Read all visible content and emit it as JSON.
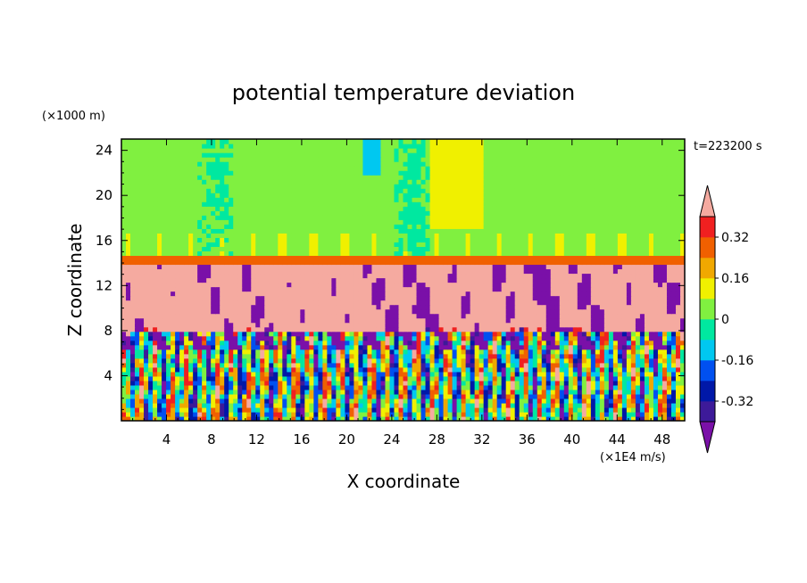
{
  "chart_data": {
    "type": "heatmap",
    "title": "potential temperature deviation",
    "time_label": "t=223200 s",
    "xlabel": "X coordinate",
    "ylabel": "Z coordinate",
    "x_unit": "(×1E4 m/s)",
    "y_unit": "(×1000 m)",
    "xlim": [
      0,
      50
    ],
    "ylim": [
      0,
      25
    ],
    "x_ticks": [
      4,
      8,
      12,
      16,
      20,
      24,
      28,
      32,
      36,
      40,
      44,
      48
    ],
    "y_ticks": [
      4,
      8,
      12,
      16,
      20,
      24
    ],
    "colorbar": {
      "boundaries": [
        -0.4,
        -0.32,
        -0.24,
        -0.16,
        -0.08,
        0,
        0.08,
        0.16,
        0.24,
        0.32,
        0.4
      ],
      "colors": [
        "#3d1a99",
        "#0018a8",
        "#0050f0",
        "#00c8f0",
        "#00e8a0",
        "#80f040",
        "#f0f000",
        "#f0a800",
        "#f06000",
        "#f02020"
      ],
      "under_color": "#7a10a8",
      "over_color": "#f5aaa0",
      "tick_values": [
        -0.32,
        -0.16,
        0,
        0.16,
        0.32
      ],
      "tick_labels": [
        "-0.32",
        "-0.16",
        "0",
        "0.16",
        "0.32"
      ]
    },
    "layers": [
      {
        "z_range": [
          14.5,
          25
        ],
        "dominant_value": 0.02,
        "description": "upper layer near zero deviation"
      },
      {
        "z_range": [
          14,
          14.5
        ],
        "dominant_value": 0.3,
        "description": "sharp warm band at top of mixed region"
      },
      {
        "z_range": [
          8,
          14
        ],
        "dominant_value": 0.4,
        "description": "warm layer (over range) with cold plumes"
      },
      {
        "z_range": [
          0,
          8
        ],
        "dominant_value": 0,
        "description": "turbulent alternating warm and cold plumes"
      }
    ]
  }
}
